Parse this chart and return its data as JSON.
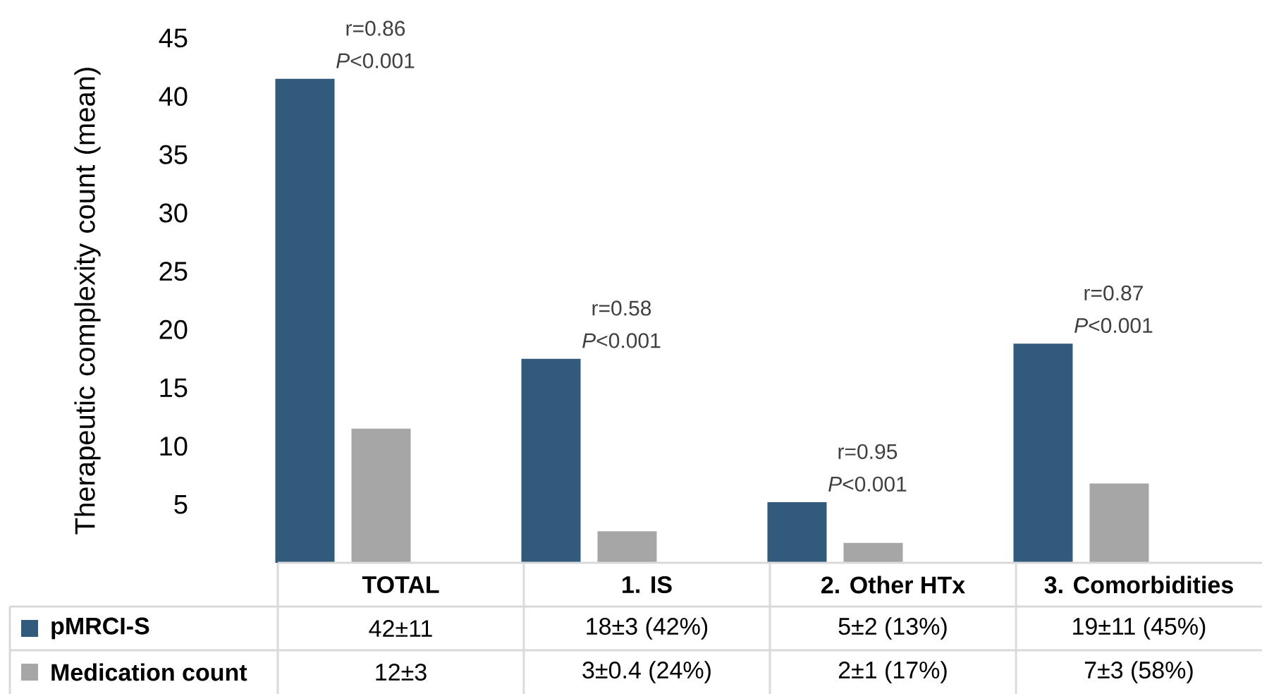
{
  "chart_data": {
    "type": "bar",
    "ylabel": "Therapeutic complexity count (mean)",
    "categories": [
      "TOTAL",
      "1. IS",
      "2. Other HTx",
      "3. Comorbidities"
    ],
    "series": [
      {
        "name": "pMRCI-S",
        "color": "#315a7d",
        "values": [
          41.5,
          17.5,
          5.2,
          18.8
        ],
        "value_labels": [
          "42±11",
          "18±3 (42%)",
          "5±2 (13%)",
          "19±11 (45%)"
        ]
      },
      {
        "name": "Medication count",
        "color": "#a6a6a6",
        "values": [
          11.5,
          2.7,
          1.7,
          6.8
        ],
        "value_labels": [
          "12±3",
          "3±0.4 (24%)",
          "2±1 (17%)",
          "7±3 (58%)"
        ]
      }
    ],
    "ylim": [
      0,
      45
    ],
    "yticks": [
      5,
      10,
      15,
      20,
      25,
      30,
      35,
      40,
      45
    ],
    "annotations": [
      "r=0.86",
      "*P*<0.001",
      "r=0.58",
      "*P*<0.001",
      "r=0.95",
      "*P*<0.001",
      "r=0.87",
      "*P*<0.001"
    ],
    "legend": "bottom",
    "grid": false
  }
}
